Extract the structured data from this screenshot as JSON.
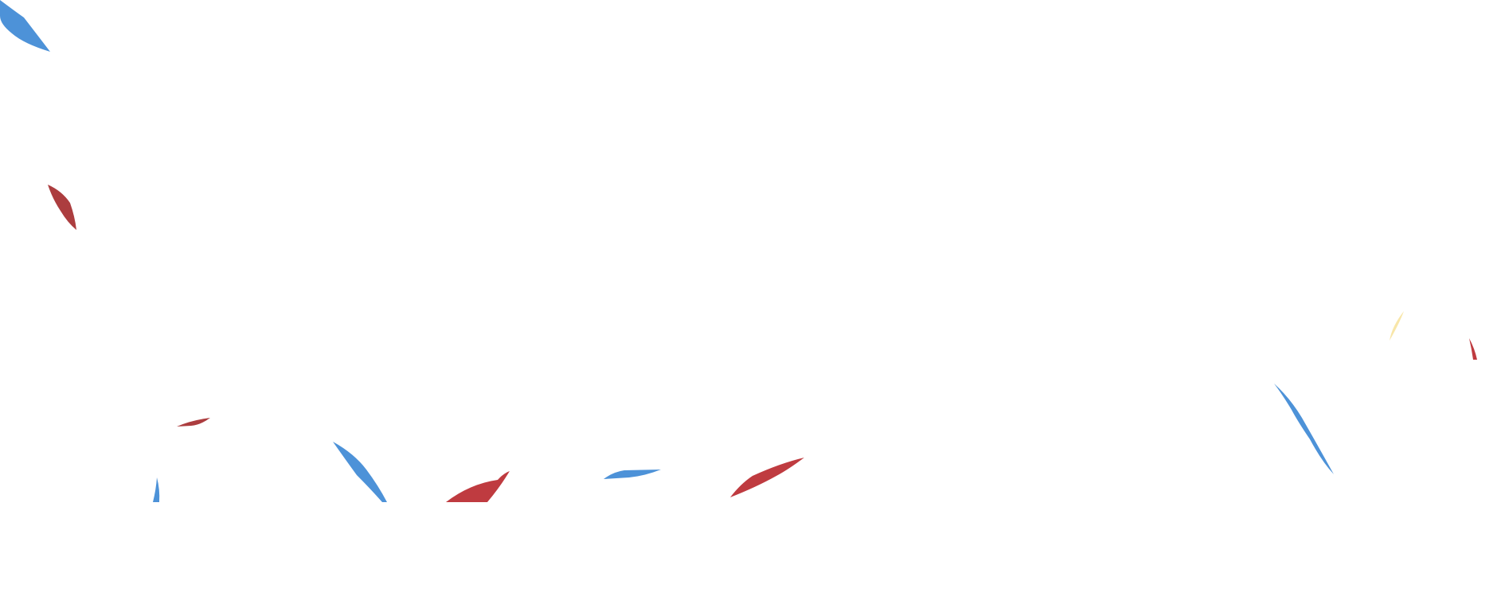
{
  "background_color": "#ffffff",
  "colors": {
    "blue": "#3a86d4",
    "red": "#b8262b",
    "dark_red": "#a3282a",
    "yellow": "#f7e3a0"
  },
  "decorations": [
    {
      "name": "leaf-blue-top-left",
      "color": "blue"
    },
    {
      "name": "leaf-red-left",
      "color": "dark_red"
    },
    {
      "name": "leaf-red-small-left",
      "color": "dark_red"
    },
    {
      "name": "leaf-blue-bottom-left",
      "color": "blue"
    },
    {
      "name": "leaf-blue-bottom-center-left",
      "color": "blue"
    },
    {
      "name": "leaf-red-bottom-center",
      "color": "red"
    },
    {
      "name": "leaf-blue-bottom-center",
      "color": "blue"
    },
    {
      "name": "leaf-red-bottom-center-right",
      "color": "red"
    },
    {
      "name": "leaf-yellow-right",
      "color": "yellow"
    },
    {
      "name": "leaf-red-right-edge",
      "color": "red"
    },
    {
      "name": "leaf-blue-right",
      "color": "blue"
    }
  ]
}
